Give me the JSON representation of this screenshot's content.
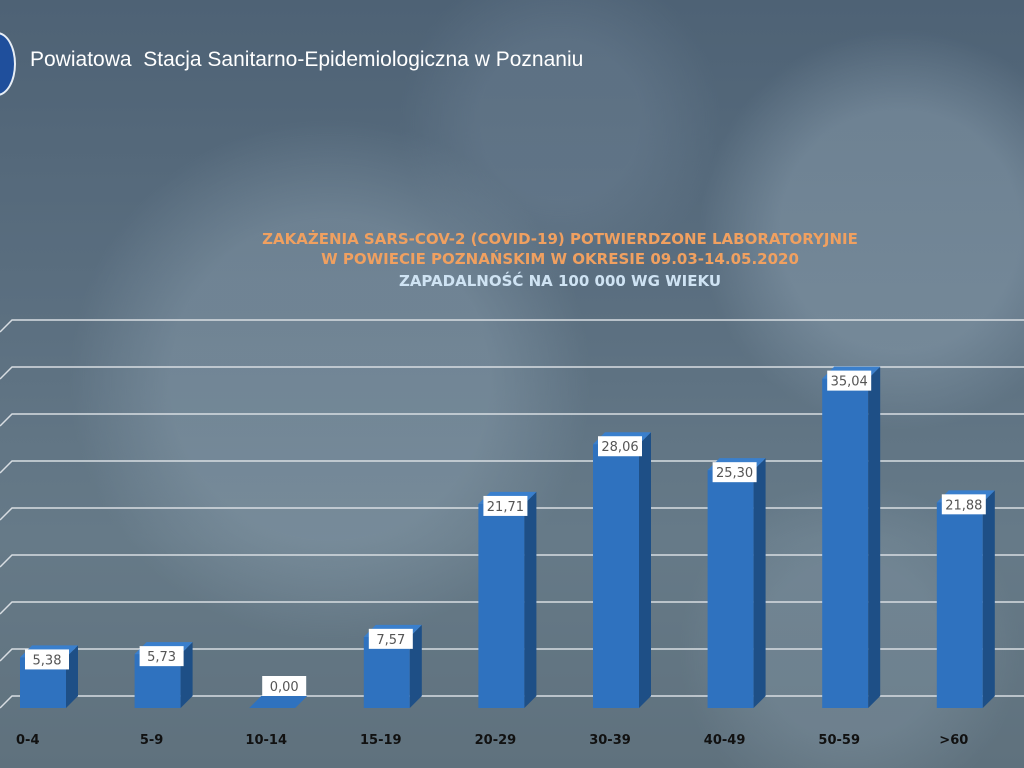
{
  "header": {
    "org_name": "Powiatowa  Stacja Sanitarno-Epidemiologiczna w Poznaniu"
  },
  "chart_data": {
    "type": "bar",
    "title_line1": "ZAKAŻENIA SARS-COV-2 (COVID-19) POTWIERDZONE LABORATORYJNIE",
    "title_line2": "W POWIECIE POZNAŃSKIM W OKRESIE 09.03-14.05.2020",
    "subtitle": "ZAPADALNOŚĆ NA 100 000 WG WIEKU",
    "categories": [
      "0-4",
      "5-9",
      "10-14",
      "15-19",
      "20-29",
      "30-39",
      "40-49",
      "50-59",
      ">60"
    ],
    "values": [
      5.38,
      5.73,
      0.0,
      7.57,
      21.71,
      28.06,
      25.3,
      35.04,
      21.88
    ],
    "data_labels": [
      "5,38",
      "5,73",
      "0,00",
      "7,57",
      "21,71",
      "28,06",
      "25,30",
      "35,04",
      "21,88"
    ],
    "ylim": [
      0,
      40
    ],
    "grid_step": 5,
    "grid": true,
    "style": "3d-column",
    "colors": {
      "bar_front": "#2f72bf",
      "bar_side": "#1e4f86",
      "bar_top": "#3a7fcc",
      "title": "#f0a060",
      "subtitle": "#cfe3f3"
    }
  }
}
